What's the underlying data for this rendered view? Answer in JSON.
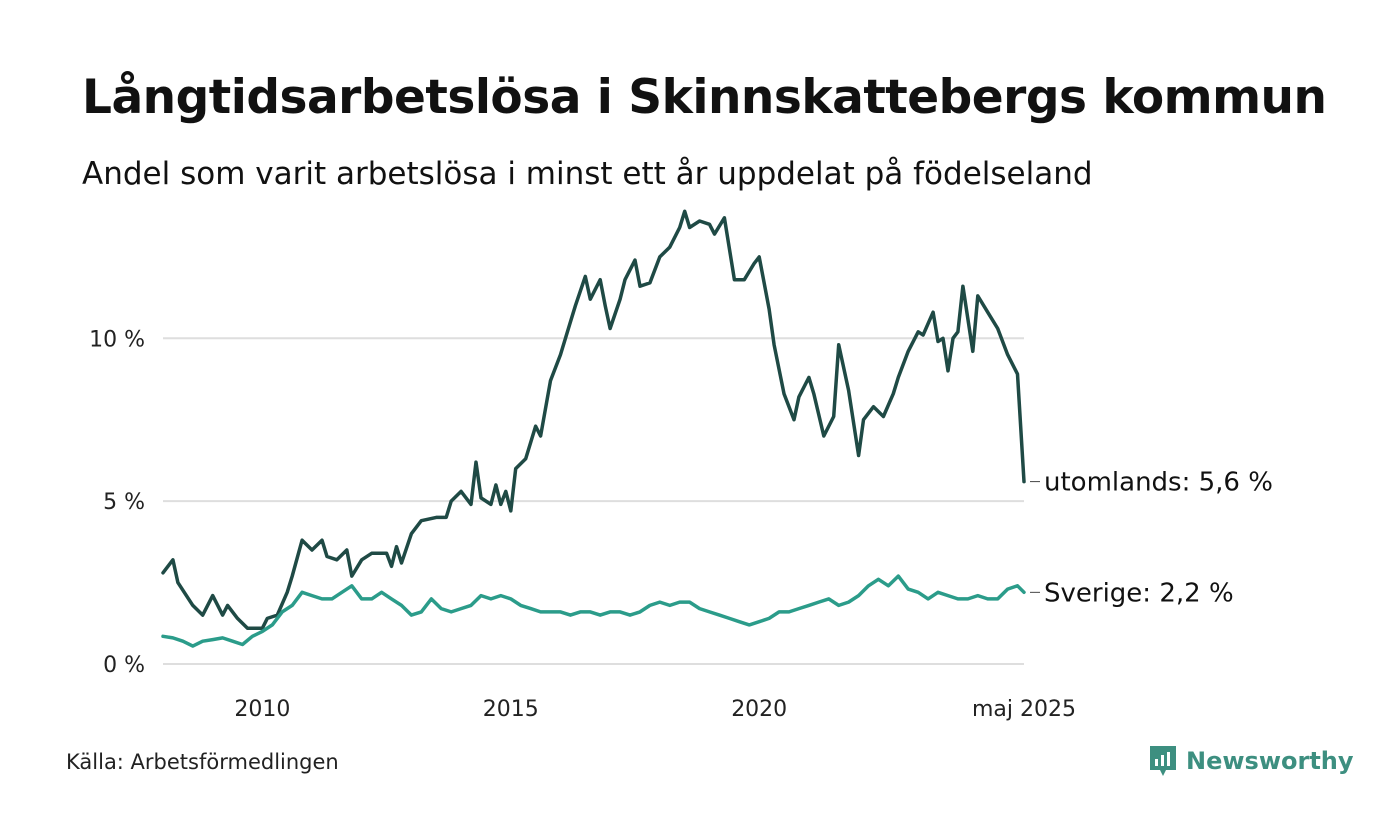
{
  "title": "Långtidsarbetslösa i Skinnskattebergs kommun",
  "subtitle": "Andel som varit arbetslösa i minst ett år uppdelat på födelseland",
  "source": "Källa: Arbetsförmedlingen",
  "brand": {
    "name": "Newsworthy",
    "icon": "newsworthy-logo-icon",
    "color": "#3d8f80"
  },
  "chart_data": {
    "type": "line",
    "title": "Långtidsarbetslösa i Skinnskattebergs kommun",
    "subtitle": "Andel som varit arbetslösa i minst ett år uppdelat på födelseland",
    "xlabel": "",
    "ylabel": "",
    "x_ticks": [
      "2010",
      "2015",
      "2020",
      "maj 2025"
    ],
    "x_tick_values": [
      2010.0,
      2015.0,
      2020.0,
      2025.33
    ],
    "xlim": [
      2008.0,
      2025.33
    ],
    "y_ticks": [
      "0 %",
      "5 %",
      "10 %"
    ],
    "y_tick_values": [
      0,
      5,
      10
    ],
    "ylim": [
      0,
      14
    ],
    "grid": "horizontal",
    "legend": "direct labels at line ends (right)",
    "series": [
      {
        "name": "utomlands",
        "end_label": "utomlands: 5,6 %",
        "color": "#1f4a45",
        "points": [
          [
            2008.0,
            2.8
          ],
          [
            2008.2,
            3.2
          ],
          [
            2008.3,
            2.5
          ],
          [
            2008.6,
            1.8
          ],
          [
            2008.8,
            1.5
          ],
          [
            2009.0,
            2.1
          ],
          [
            2009.2,
            1.5
          ],
          [
            2009.3,
            1.8
          ],
          [
            2009.5,
            1.4
          ],
          [
            2009.7,
            1.1
          ],
          [
            2010.0,
            1.1
          ],
          [
            2010.1,
            1.4
          ],
          [
            2010.3,
            1.5
          ],
          [
            2010.5,
            2.2
          ],
          [
            2010.6,
            2.7
          ],
          [
            2010.8,
            3.8
          ],
          [
            2011.0,
            3.5
          ],
          [
            2011.2,
            3.8
          ],
          [
            2011.3,
            3.3
          ],
          [
            2011.5,
            3.2
          ],
          [
            2011.7,
            3.5
          ],
          [
            2011.8,
            2.7
          ],
          [
            2012.0,
            3.2
          ],
          [
            2012.2,
            3.4
          ],
          [
            2012.5,
            3.4
          ],
          [
            2012.6,
            3.0
          ],
          [
            2012.7,
            3.6
          ],
          [
            2012.8,
            3.1
          ],
          [
            2013.0,
            4.0
          ],
          [
            2013.2,
            4.4
          ],
          [
            2013.5,
            4.5
          ],
          [
            2013.7,
            4.5
          ],
          [
            2013.8,
            5.0
          ],
          [
            2014.0,
            5.3
          ],
          [
            2014.2,
            4.9
          ],
          [
            2014.3,
            6.2
          ],
          [
            2014.4,
            5.1
          ],
          [
            2014.6,
            4.9
          ],
          [
            2014.7,
            5.5
          ],
          [
            2014.8,
            4.9
          ],
          [
            2014.9,
            5.3
          ],
          [
            2015.0,
            4.7
          ],
          [
            2015.1,
            6.0
          ],
          [
            2015.3,
            6.3
          ],
          [
            2015.5,
            7.3
          ],
          [
            2015.6,
            7.0
          ],
          [
            2015.8,
            8.7
          ],
          [
            2016.0,
            9.5
          ],
          [
            2016.2,
            10.5
          ],
          [
            2016.3,
            11.0
          ],
          [
            2016.5,
            11.9
          ],
          [
            2016.6,
            11.2
          ],
          [
            2016.8,
            11.8
          ],
          [
            2016.9,
            11.0
          ],
          [
            2017.0,
            10.3
          ],
          [
            2017.2,
            11.2
          ],
          [
            2017.3,
            11.8
          ],
          [
            2017.5,
            12.4
          ],
          [
            2017.6,
            11.6
          ],
          [
            2017.8,
            11.7
          ],
          [
            2018.0,
            12.5
          ],
          [
            2018.2,
            12.8
          ],
          [
            2018.4,
            13.4
          ],
          [
            2018.5,
            13.9
          ],
          [
            2018.6,
            13.4
          ],
          [
            2018.8,
            13.6
          ],
          [
            2019.0,
            13.5
          ],
          [
            2019.1,
            13.2
          ],
          [
            2019.3,
            13.7
          ],
          [
            2019.5,
            11.8
          ],
          [
            2019.7,
            11.8
          ],
          [
            2019.9,
            12.3
          ],
          [
            2020.0,
            12.5
          ],
          [
            2020.2,
            10.9
          ],
          [
            2020.3,
            9.8
          ],
          [
            2020.5,
            8.3
          ],
          [
            2020.7,
            7.5
          ],
          [
            2020.8,
            8.2
          ],
          [
            2021.0,
            8.8
          ],
          [
            2021.1,
            8.3
          ],
          [
            2021.3,
            7.0
          ],
          [
            2021.5,
            7.6
          ],
          [
            2021.6,
            9.8
          ],
          [
            2021.8,
            8.4
          ],
          [
            2022.0,
            6.4
          ],
          [
            2022.1,
            7.5
          ],
          [
            2022.3,
            7.9
          ],
          [
            2022.5,
            7.6
          ],
          [
            2022.7,
            8.3
          ],
          [
            2022.8,
            8.8
          ],
          [
            2023.0,
            9.6
          ],
          [
            2023.2,
            10.2
          ],
          [
            2023.3,
            10.1
          ],
          [
            2023.5,
            10.8
          ],
          [
            2023.6,
            9.9
          ],
          [
            2023.7,
            10.0
          ],
          [
            2023.8,
            9.0
          ],
          [
            2023.9,
            10.0
          ],
          [
            2024.0,
            10.2
          ],
          [
            2024.1,
            11.6
          ],
          [
            2024.3,
            9.6
          ],
          [
            2024.4,
            11.3
          ],
          [
            2024.6,
            10.8
          ],
          [
            2024.8,
            10.3
          ],
          [
            2025.0,
            9.5
          ],
          [
            2025.2,
            8.9
          ],
          [
            2025.33,
            5.6
          ]
        ]
      },
      {
        "name": "Sverige",
        "end_label": "Sverige: 2,2 %",
        "color": "#2b9c8a",
        "points": [
          [
            2008.0,
            0.85
          ],
          [
            2008.2,
            0.8
          ],
          [
            2008.4,
            0.7
          ],
          [
            2008.6,
            0.55
          ],
          [
            2008.8,
            0.7
          ],
          [
            2009.0,
            0.75
          ],
          [
            2009.2,
            0.8
          ],
          [
            2009.4,
            0.7
          ],
          [
            2009.6,
            0.6
          ],
          [
            2009.8,
            0.85
          ],
          [
            2010.0,
            1.0
          ],
          [
            2010.2,
            1.2
          ],
          [
            2010.4,
            1.6
          ],
          [
            2010.6,
            1.8
          ],
          [
            2010.8,
            2.2
          ],
          [
            2011.0,
            2.1
          ],
          [
            2011.2,
            2.0
          ],
          [
            2011.4,
            2.0
          ],
          [
            2011.6,
            2.2
          ],
          [
            2011.8,
            2.4
          ],
          [
            2012.0,
            2.0
          ],
          [
            2012.2,
            2.0
          ],
          [
            2012.4,
            2.2
          ],
          [
            2012.6,
            2.0
          ],
          [
            2012.8,
            1.8
          ],
          [
            2013.0,
            1.5
          ],
          [
            2013.2,
            1.6
          ],
          [
            2013.4,
            2.0
          ],
          [
            2013.6,
            1.7
          ],
          [
            2013.8,
            1.6
          ],
          [
            2014.0,
            1.7
          ],
          [
            2014.2,
            1.8
          ],
          [
            2014.4,
            2.1
          ],
          [
            2014.6,
            2.0
          ],
          [
            2014.8,
            2.1
          ],
          [
            2015.0,
            2.0
          ],
          [
            2015.2,
            1.8
          ],
          [
            2015.4,
            1.7
          ],
          [
            2015.6,
            1.6
          ],
          [
            2015.8,
            1.6
          ],
          [
            2016.0,
            1.6
          ],
          [
            2016.2,
            1.5
          ],
          [
            2016.4,
            1.6
          ],
          [
            2016.6,
            1.6
          ],
          [
            2016.8,
            1.5
          ],
          [
            2017.0,
            1.6
          ],
          [
            2017.2,
            1.6
          ],
          [
            2017.4,
            1.5
          ],
          [
            2017.6,
            1.6
          ],
          [
            2017.8,
            1.8
          ],
          [
            2018.0,
            1.9
          ],
          [
            2018.2,
            1.8
          ],
          [
            2018.4,
            1.9
          ],
          [
            2018.6,
            1.9
          ],
          [
            2018.8,
            1.7
          ],
          [
            2019.0,
            1.6
          ],
          [
            2019.2,
            1.5
          ],
          [
            2019.4,
            1.4
          ],
          [
            2019.6,
            1.3
          ],
          [
            2019.8,
            1.2
          ],
          [
            2020.0,
            1.3
          ],
          [
            2020.2,
            1.4
          ],
          [
            2020.4,
            1.6
          ],
          [
            2020.6,
            1.6
          ],
          [
            2020.8,
            1.7
          ],
          [
            2021.0,
            1.8
          ],
          [
            2021.2,
            1.9
          ],
          [
            2021.4,
            2.0
          ],
          [
            2021.6,
            1.8
          ],
          [
            2021.8,
            1.9
          ],
          [
            2022.0,
            2.1
          ],
          [
            2022.2,
            2.4
          ],
          [
            2022.4,
            2.6
          ],
          [
            2022.6,
            2.4
          ],
          [
            2022.8,
            2.7
          ],
          [
            2023.0,
            2.3
          ],
          [
            2023.2,
            2.2
          ],
          [
            2023.4,
            2.0
          ],
          [
            2023.6,
            2.2
          ],
          [
            2023.8,
            2.1
          ],
          [
            2024.0,
            2.0
          ],
          [
            2024.2,
            2.0
          ],
          [
            2024.4,
            2.1
          ],
          [
            2024.6,
            2.0
          ],
          [
            2024.8,
            2.0
          ],
          [
            2025.0,
            2.3
          ],
          [
            2025.2,
            2.4
          ],
          [
            2025.33,
            2.2
          ]
        ]
      }
    ]
  }
}
